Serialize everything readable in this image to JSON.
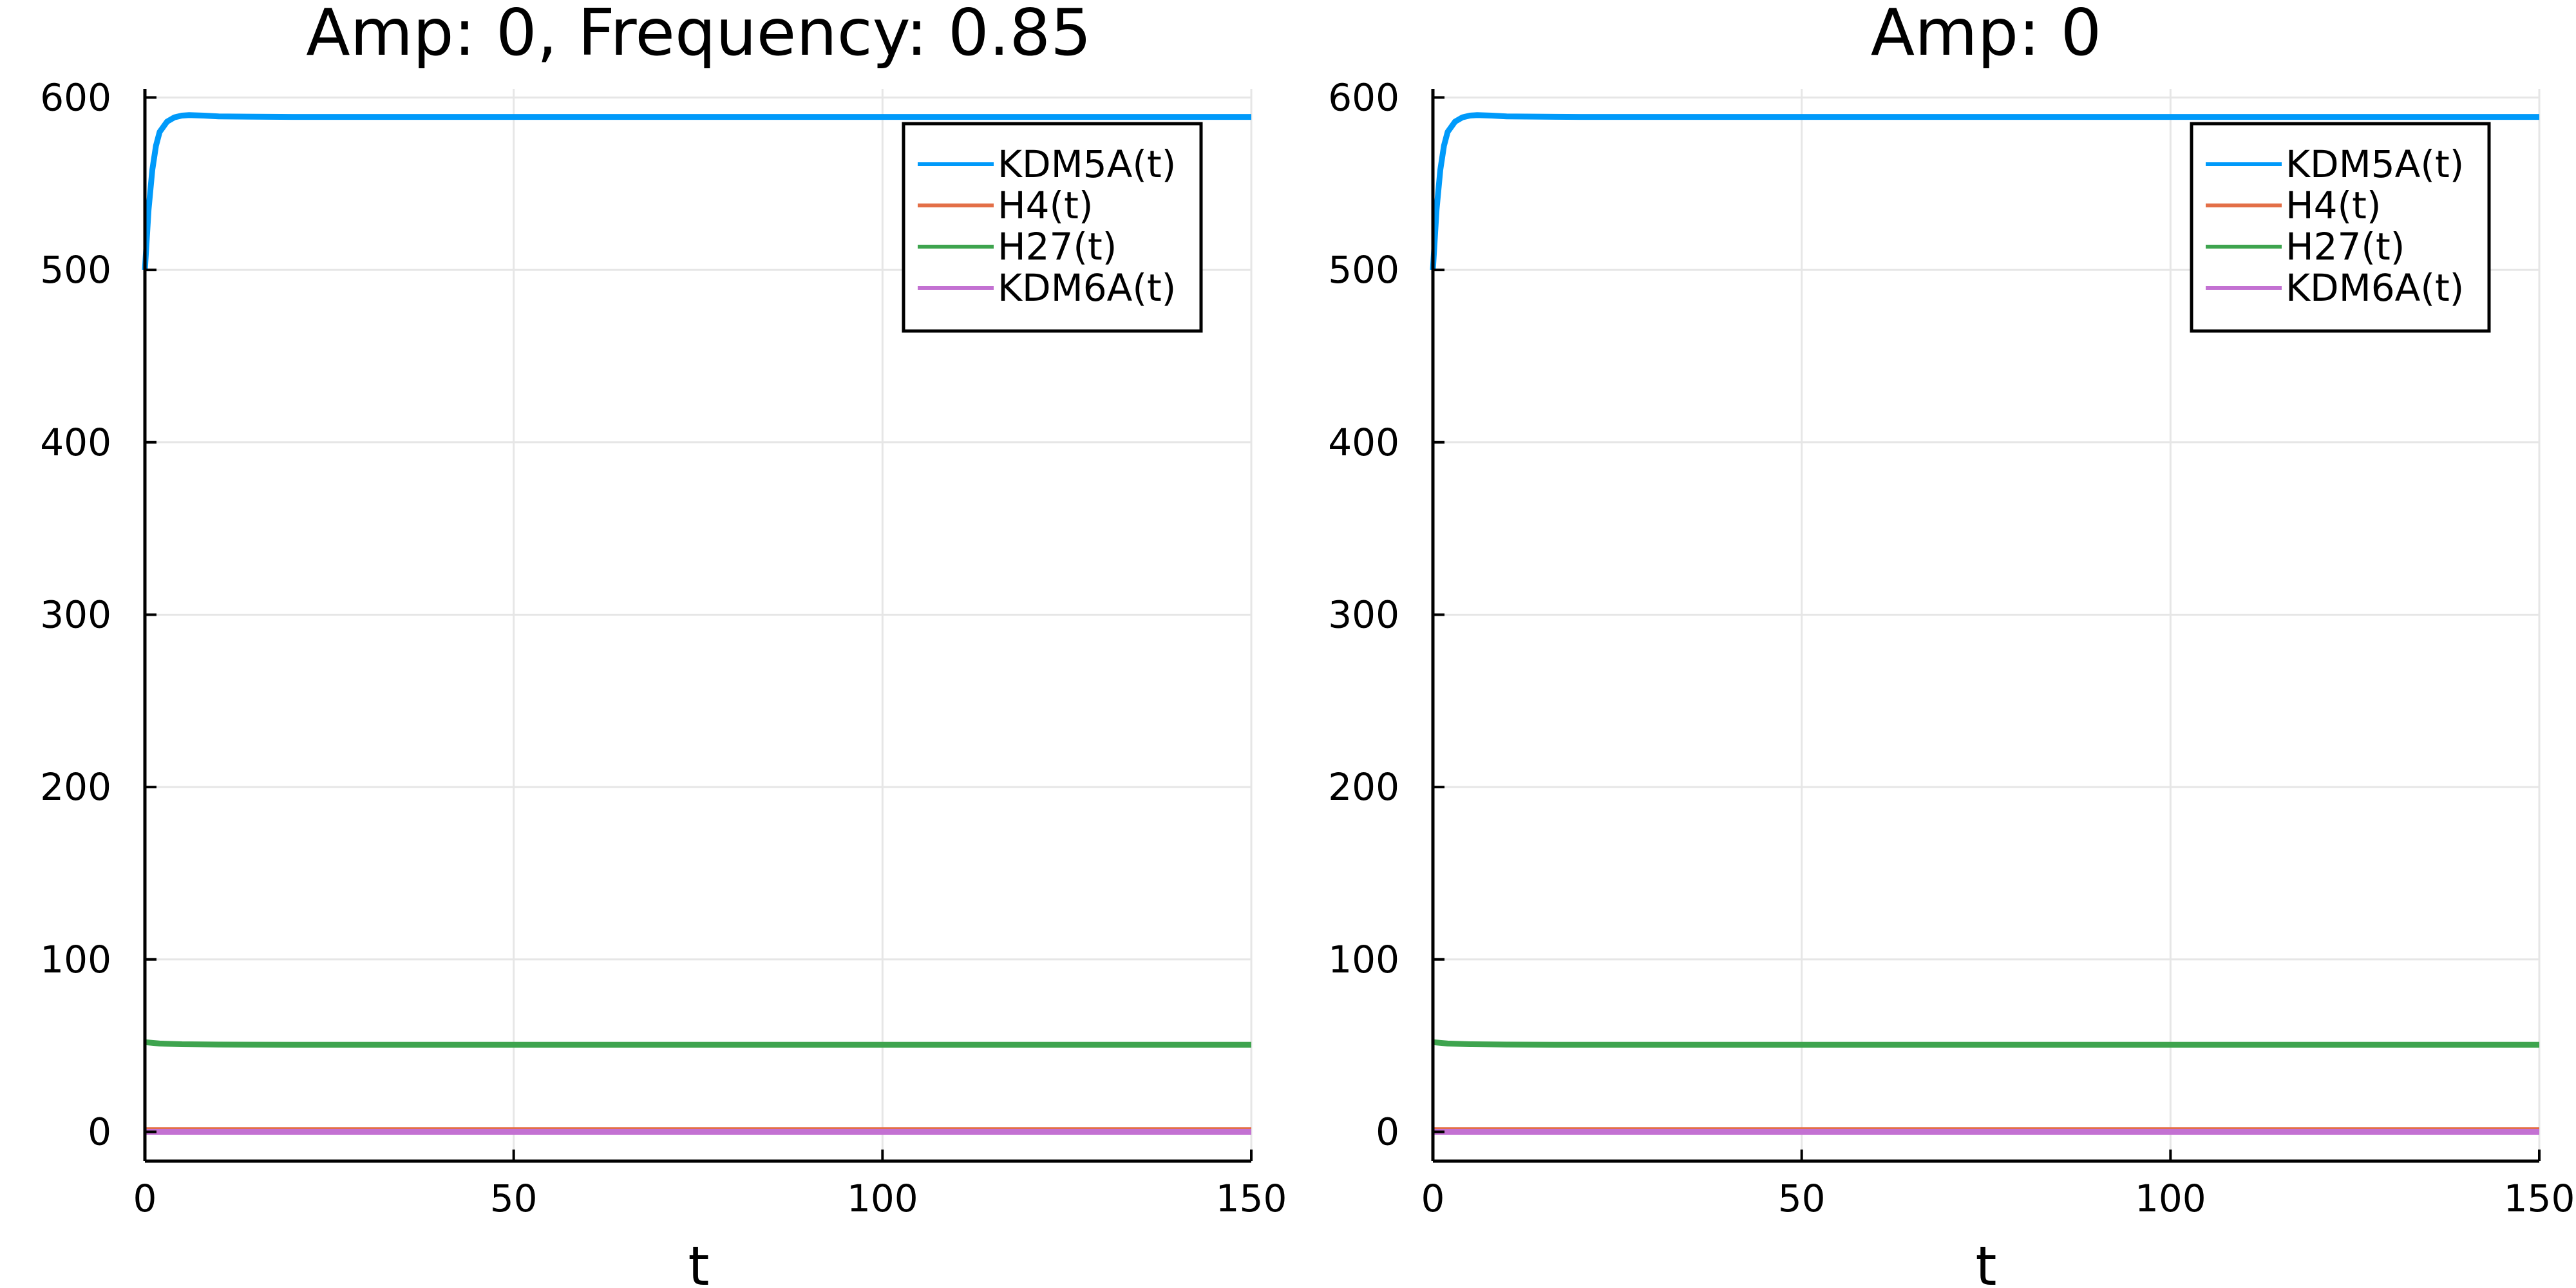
{
  "chart_data": [
    {
      "type": "line",
      "title": "Amp: 0, Frequency: 0.85",
      "xlabel": "t",
      "ylabel": "",
      "xlim": [
        0,
        150
      ],
      "ylim": [
        -17,
        605
      ],
      "xticks": [
        0,
        50,
        100,
        150
      ],
      "yticks": [
        0,
        100,
        200,
        300,
        400,
        500,
        600
      ],
      "grid": true,
      "legend_position": "top-right",
      "series": [
        {
          "name": "KDM5A(t)",
          "color": "#009AFA",
          "x": [
            0,
            0.5,
            1,
            1.5,
            2,
            3,
            4,
            5,
            6,
            8,
            10,
            20,
            50,
            100,
            150
          ],
          "y": [
            500,
            535,
            558,
            572,
            580,
            586,
            588.5,
            589.5,
            589.8,
            589.5,
            589,
            588.7,
            588.7,
            588.7,
            588.7
          ]
        },
        {
          "name": "H4(t)",
          "color": "#E36F47",
          "x": [
            0,
            10,
            50,
            100,
            150
          ],
          "y": [
            1,
            1,
            1,
            1,
            1
          ]
        },
        {
          "name": "H27(t)",
          "color": "#3EA44E",
          "x": [
            0,
            2,
            5,
            10,
            20,
            50,
            100,
            150
          ],
          "y": [
            52,
            51.2,
            50.8,
            50.6,
            50.5,
            50.5,
            50.5,
            50.5
          ]
        },
        {
          "name": "KDM6A(t)",
          "color": "#C371D2",
          "x": [
            0,
            10,
            50,
            100,
            150
          ],
          "y": [
            0,
            0,
            0,
            0,
            0
          ]
        }
      ]
    },
    {
      "type": "line",
      "title": "Amp: 0",
      "xlabel": "t",
      "ylabel": "",
      "xlim": [
        0,
        150
      ],
      "ylim": [
        -17,
        605
      ],
      "xticks": [
        0,
        50,
        100,
        150
      ],
      "yticks": [
        0,
        100,
        200,
        300,
        400,
        500,
        600
      ],
      "grid": true,
      "legend_position": "top-right",
      "series": [
        {
          "name": "KDM5A(t)",
          "color": "#009AFA",
          "x": [
            0,
            0.5,
            1,
            1.5,
            2,
            3,
            4,
            5,
            6,
            8,
            10,
            20,
            50,
            100,
            150
          ],
          "y": [
            500,
            535,
            558,
            572,
            580,
            586,
            588.5,
            589.5,
            589.8,
            589.5,
            589,
            588.7,
            588.7,
            588.7,
            588.7
          ]
        },
        {
          "name": "H4(t)",
          "color": "#E36F47",
          "x": [
            0,
            10,
            50,
            100,
            150
          ],
          "y": [
            1,
            1,
            1,
            1,
            1
          ]
        },
        {
          "name": "H27(t)",
          "color": "#3EA44E",
          "x": [
            0,
            2,
            5,
            10,
            20,
            50,
            100,
            150
          ],
          "y": [
            52,
            51.2,
            50.8,
            50.6,
            50.5,
            50.5,
            50.5,
            50.5
          ]
        },
        {
          "name": "KDM6A(t)",
          "color": "#C371D2",
          "x": [
            0,
            10,
            50,
            100,
            150
          ],
          "y": [
            0,
            0,
            0,
            0,
            0
          ]
        }
      ]
    }
  ]
}
